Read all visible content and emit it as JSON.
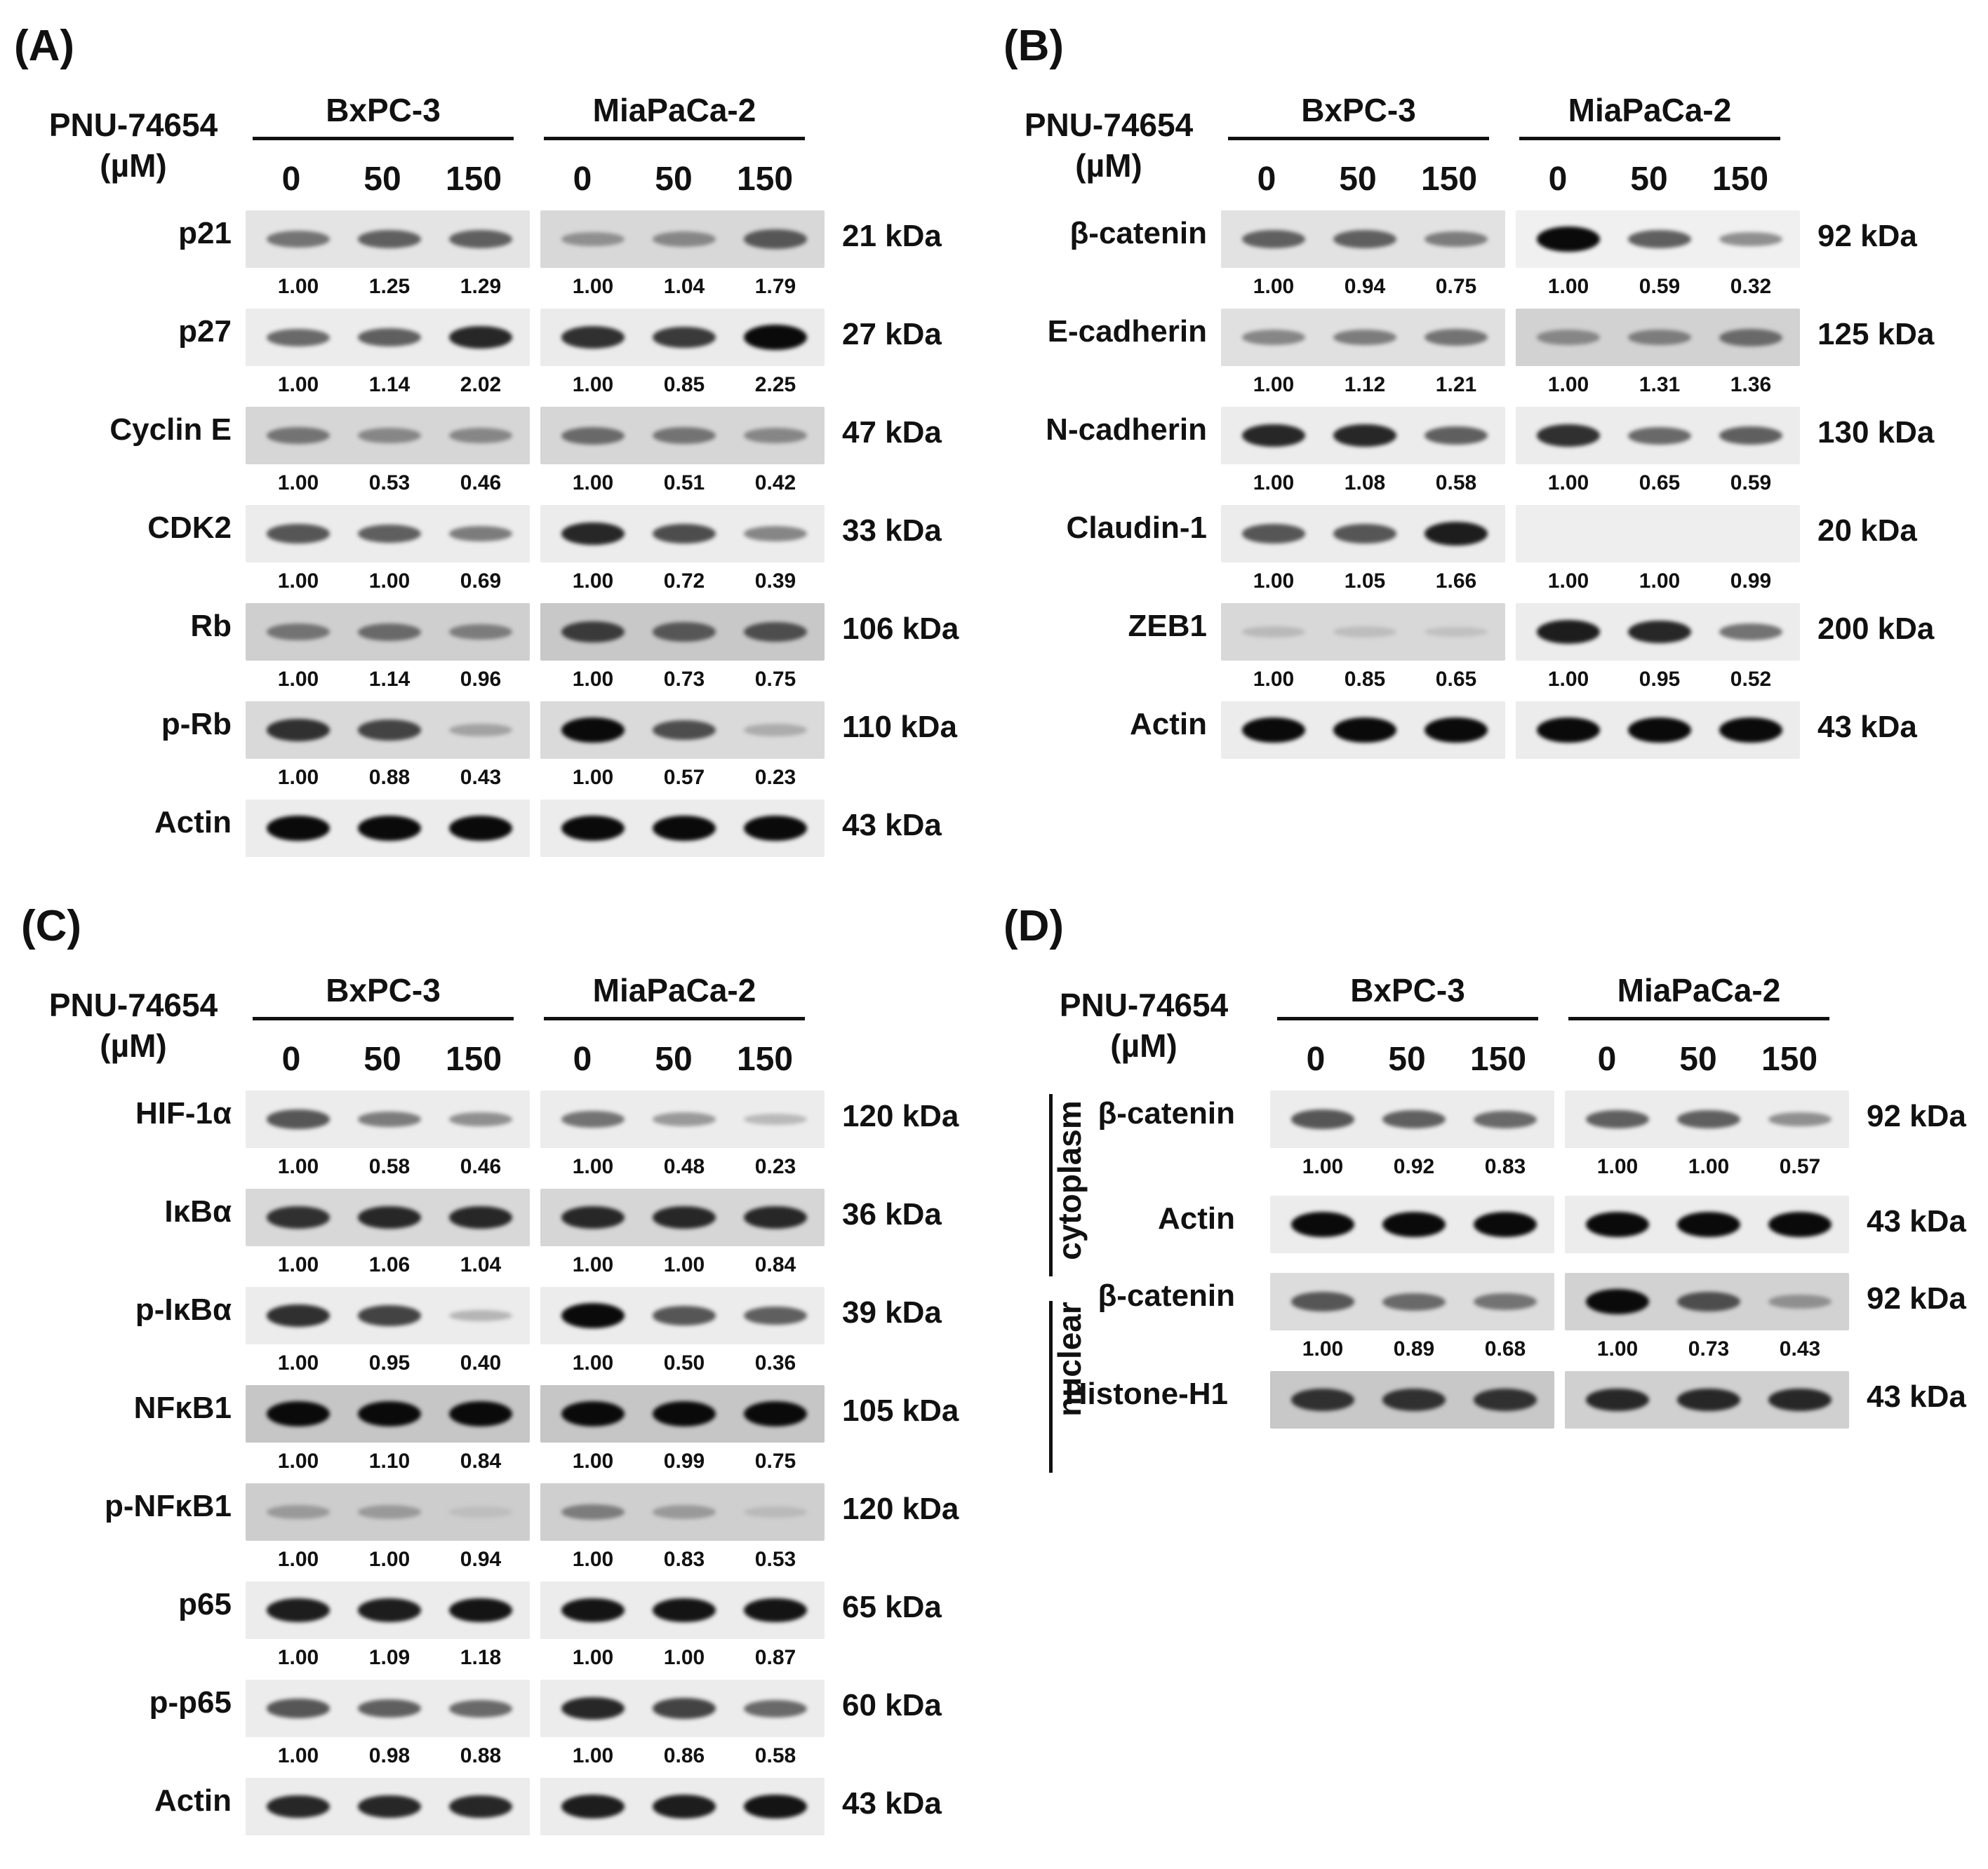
{
  "panels": [
    {
      "label": "(A)",
      "drug": "PNU-74654",
      "unit": "(µM)",
      "cell_lines": [
        "BxPC-3",
        "MiaPaCa-2"
      ],
      "concentrations": [
        "0",
        "50",
        "150"
      ],
      "rows": [
        {
          "name": "p21",
          "kda": "21 kDa",
          "bx": [
            "1.00",
            "1.25",
            "1.29"
          ],
          "mia": [
            "1.00",
            "1.04",
            "1.79"
          ]
        },
        {
          "name": "p27",
          "kda": "27 kDa",
          "bx": [
            "1.00",
            "1.14",
            "2.02"
          ],
          "mia": [
            "1.00",
            "0.85",
            "2.25"
          ]
        },
        {
          "name": "Cyclin E",
          "kda": "47 kDa",
          "bx": [
            "1.00",
            "0.53",
            "0.46"
          ],
          "mia": [
            "1.00",
            "0.51",
            "0.42"
          ]
        },
        {
          "name": "CDK2",
          "kda": "33 kDa",
          "bx": [
            "1.00",
            "1.00",
            "0.69"
          ],
          "mia": [
            "1.00",
            "0.72",
            "0.39"
          ]
        },
        {
          "name": "Rb",
          "kda": "106 kDa",
          "bx": [
            "1.00",
            "1.14",
            "0.96"
          ],
          "mia": [
            "1.00",
            "0.73",
            "0.75"
          ]
        },
        {
          "name": "p-Rb",
          "kda": "110 kDa",
          "bx": [
            "1.00",
            "0.88",
            "0.43"
          ],
          "mia": [
            "1.00",
            "0.57",
            "0.23"
          ]
        },
        {
          "name": "Actin",
          "kda": "43 kDa",
          "bx": [],
          "mia": []
        }
      ]
    },
    {
      "label": "(B)",
      "drug": "PNU-74654",
      "unit": "(µM)",
      "cell_lines": [
        "BxPC-3",
        "MiaPaCa-2"
      ],
      "concentrations": [
        "0",
        "50",
        "150"
      ],
      "rows": [
        {
          "name": "β-catenin",
          "kda": "92 kDa",
          "bx": [
            "1.00",
            "0.94",
            "0.75"
          ],
          "mia": [
            "1.00",
            "0.59",
            "0.32"
          ]
        },
        {
          "name": "E-cadherin",
          "kda": "125 kDa",
          "bx": [
            "1.00",
            "1.12",
            "1.21"
          ],
          "mia": [
            "1.00",
            "1.31",
            "1.36"
          ]
        },
        {
          "name": "N-cadherin",
          "kda": "130 kDa",
          "bx": [
            "1.00",
            "1.08",
            "0.58"
          ],
          "mia": [
            "1.00",
            "0.65",
            "0.59"
          ]
        },
        {
          "name": "Claudin-1",
          "kda": "20 kDa",
          "bx": [
            "1.00",
            "1.05",
            "1.66"
          ],
          "mia": [
            "1.00",
            "1.00",
            "0.99"
          ]
        },
        {
          "name": "ZEB1",
          "kda": "200 kDa",
          "bx": [
            "1.00",
            "0.85",
            "0.65"
          ],
          "mia": [
            "1.00",
            "0.95",
            "0.52"
          ]
        },
        {
          "name": "Actin",
          "kda": "43 kDa",
          "bx": [],
          "mia": []
        }
      ]
    },
    {
      "label": "(C)",
      "drug": "PNU-74654",
      "unit": "(µM)",
      "cell_lines": [
        "BxPC-3",
        "MiaPaCa-2"
      ],
      "concentrations": [
        "0",
        "50",
        "150"
      ],
      "rows": [
        {
          "name": "HIF-1α",
          "kda": "120 kDa",
          "bx": [
            "1.00",
            "0.58",
            "0.46"
          ],
          "mia": [
            "1.00",
            "0.48",
            "0.23"
          ]
        },
        {
          "name": "IκBα",
          "kda": "36 kDa",
          "bx": [
            "1.00",
            "1.06",
            "1.04"
          ],
          "mia": [
            "1.00",
            "1.00",
            "0.84"
          ]
        },
        {
          "name": "p-IκBα",
          "kda": "39 kDa",
          "bx": [
            "1.00",
            "0.95",
            "0.40"
          ],
          "mia": [
            "1.00",
            "0.50",
            "0.36"
          ]
        },
        {
          "name": "NFκB1",
          "kda": "105 kDa",
          "bx": [
            "1.00",
            "1.10",
            "0.84"
          ],
          "mia": [
            "1.00",
            "0.99",
            "0.75"
          ]
        },
        {
          "name": "p-NFκB1",
          "kda": "120 kDa",
          "bx": [
            "1.00",
            "1.00",
            "0.94"
          ],
          "mia": [
            "1.00",
            "0.83",
            "0.53"
          ]
        },
        {
          "name": "p65",
          "kda": "65 kDa",
          "bx": [
            "1.00",
            "1.09",
            "1.18"
          ],
          "mia": [
            "1.00",
            "1.00",
            "0.87"
          ]
        },
        {
          "name": "p-p65",
          "kda": "60 kDa",
          "bx": [
            "1.00",
            "0.98",
            "0.88"
          ],
          "mia": [
            "1.00",
            "0.86",
            "0.58"
          ]
        },
        {
          "name": "Actin",
          "kda": "43 kDa",
          "bx": [],
          "mia": []
        }
      ]
    },
    {
      "label": "(D)",
      "drug": "PNU-74654",
      "unit": "(µM)",
      "cell_lines": [
        "BxPC-3",
        "MiaPaCa-2"
      ],
      "concentrations": [
        "0",
        "50",
        "150"
      ],
      "fractions": [
        "cytoplasm",
        "nuclear"
      ],
      "rows": [
        {
          "name": "β-catenin",
          "kda": "92 kDa",
          "bx": [
            "1.00",
            "0.92",
            "0.83"
          ],
          "mia": [
            "1.00",
            "1.00",
            "0.57"
          ]
        },
        {
          "name": "Actin",
          "kda": "43 kDa",
          "bx": [],
          "mia": []
        },
        {
          "name": "β-catenin",
          "kda": "92 kDa",
          "bx": [
            "1.00",
            "0.89",
            "0.68"
          ],
          "mia": [
            "1.00",
            "0.73",
            "0.43"
          ]
        },
        {
          "name": "Histone-H1",
          "kda": "43 kDa",
          "bx": [],
          "mia": []
        }
      ]
    }
  ],
  "band_intensity": {
    "A": [
      {
        "bx": [
          0.45,
          0.55,
          0.55
        ],
        "mia": [
          0.3,
          0.35,
          0.6
        ],
        "bg": [
          "#e4e4e4",
          "#d8d8d8"
        ]
      },
      {
        "bx": [
          0.5,
          0.55,
          0.85
        ],
        "mia": [
          0.8,
          0.75,
          1.0
        ],
        "bg": [
          "#ececec",
          "#ebebeb"
        ]
      },
      {
        "bx": [
          0.45,
          0.35,
          0.35
        ],
        "mia": [
          0.5,
          0.45,
          0.35
        ],
        "bg": [
          "#d6d6d6",
          "#d6d6d6"
        ]
      },
      {
        "bx": [
          0.6,
          0.55,
          0.4
        ],
        "mia": [
          0.85,
          0.65,
          0.35
        ],
        "bg": [
          "#ececec",
          "#ececec"
        ]
      },
      {
        "bx": [
          0.45,
          0.5,
          0.4
        ],
        "mia": [
          0.75,
          0.6,
          0.65
        ],
        "bg": [
          "#cfcfcf",
          "#c8c8c8"
        ]
      },
      {
        "bx": [
          0.8,
          0.7,
          0.2
        ],
        "mia": [
          1.0,
          0.65,
          0.15
        ],
        "bg": [
          "#d9d9d9",
          "#dadada"
        ]
      },
      {
        "bx": [
          1.0,
          1.0,
          1.0
        ],
        "mia": [
          1.0,
          1.0,
          1.0
        ],
        "bg": [
          "#ececec",
          "#ececec"
        ]
      }
    ],
    "B": [
      {
        "bx": [
          0.55,
          0.55,
          0.4
        ],
        "mia": [
          1.0,
          0.55,
          0.3
        ],
        "bg": [
          "#e2e2e2",
          "#f0f0f0"
        ]
      },
      {
        "bx": [
          0.35,
          0.4,
          0.45
        ],
        "mia": [
          0.35,
          0.4,
          0.5
        ],
        "bg": [
          "#e0e0e0",
          "#d2d2d2"
        ]
      },
      {
        "bx": [
          0.85,
          0.85,
          0.55
        ],
        "mia": [
          0.8,
          0.5,
          0.55
        ],
        "bg": [
          "#ececec",
          "#ececec"
        ]
      },
      {
        "bx": [
          0.6,
          0.6,
          0.9
        ],
        "mia": [
          0,
          0,
          0
        ],
        "bg": [
          "#ececec",
          "#eeeeee"
        ]
      },
      {
        "bx": [
          0.08,
          0.06,
          0.04
        ],
        "mia": [
          0.9,
          0.85,
          0.45
        ],
        "bg": [
          "#d8d8d8",
          "#ececec"
        ]
      },
      {
        "bx": [
          1.0,
          1.0,
          1.0
        ],
        "mia": [
          1.0,
          1.0,
          1.0
        ],
        "bg": [
          "#ececec",
          "#ececec"
        ]
      }
    ],
    "C": [
      {
        "bx": [
          0.6,
          0.4,
          0.3
        ],
        "mia": [
          0.45,
          0.25,
          0.08
        ],
        "bg": [
          "#ececec",
          "#ececec"
        ]
      },
      {
        "bx": [
          0.8,
          0.85,
          0.85
        ],
        "mia": [
          0.85,
          0.85,
          0.85
        ],
        "bg": [
          "#d8d8d8",
          "#d6d6d6"
        ]
      },
      {
        "bx": [
          0.8,
          0.7,
          0.1
        ],
        "mia": [
          1.0,
          0.6,
          0.55
        ],
        "bg": [
          "#ececec",
          "#ececec"
        ]
      },
      {
        "bx": [
          1.0,
          1.0,
          1.0
        ],
        "mia": [
          1.0,
          1.0,
          1.0
        ],
        "bg": [
          "#c6c6c6",
          "#c6c6c6"
        ]
      },
      {
        "bx": [
          0.25,
          0.25,
          0.06
        ],
        "mia": [
          0.4,
          0.25,
          0.08
        ],
        "bg": [
          "#cdcdcd",
          "#cfcfcf"
        ]
      },
      {
        "bx": [
          0.9,
          0.9,
          0.95
        ],
        "mia": [
          0.95,
          0.95,
          0.95
        ],
        "bg": [
          "#ececec",
          "#ececec"
        ]
      },
      {
        "bx": [
          0.6,
          0.55,
          0.5
        ],
        "mia": [
          0.85,
          0.7,
          0.5
        ],
        "bg": [
          "#ececec",
          "#ececec"
        ]
      },
      {
        "bx": [
          0.85,
          0.85,
          0.85
        ],
        "mia": [
          0.9,
          0.9,
          0.95
        ],
        "bg": [
          "#ececec",
          "#ececec"
        ]
      }
    ],
    "D": [
      {
        "bx": [
          0.6,
          0.55,
          0.5
        ],
        "mia": [
          0.55,
          0.55,
          0.3
        ],
        "bg": [
          "#ececec",
          "#ececec"
        ]
      },
      {
        "bx": [
          1.0,
          1.0,
          1.0
        ],
        "mia": [
          1.0,
          1.0,
          1.0
        ],
        "bg": [
          "#ececec",
          "#ececec"
        ]
      },
      {
        "bx": [
          0.6,
          0.5,
          0.45
        ],
        "mia": [
          1.0,
          0.65,
          0.3
        ],
        "bg": [
          "#dcdcdc",
          "#d2d2d2"
        ]
      },
      {
        "bx": [
          0.8,
          0.8,
          0.8
        ],
        "mia": [
          0.85,
          0.85,
          0.85
        ],
        "bg": [
          "#c8c8c8",
          "#d0d0d0"
        ]
      }
    ]
  }
}
